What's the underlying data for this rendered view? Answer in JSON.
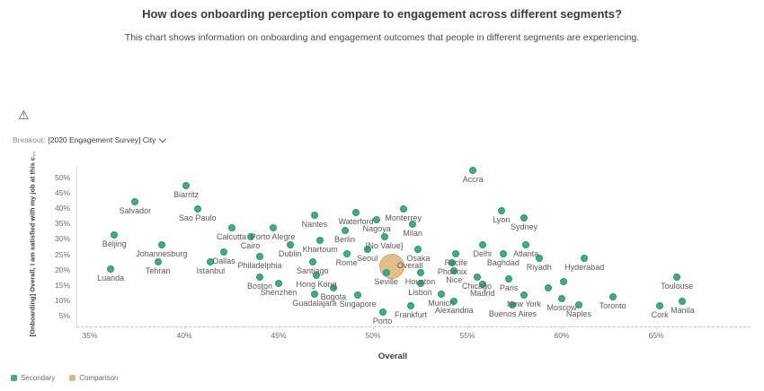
{
  "header": {
    "title": "How does onboarding perception compare to engagement across different segments?",
    "subtitle": "This chart shows information on onboarding and engagement outcomes that people in different segments are experiencing."
  },
  "toolbar": {
    "warning_icon": "warning-triangle",
    "warning_glyph": "⚠",
    "breakout_label": "Breakout:",
    "breakout_value": "[2020 Engagement Survey] City"
  },
  "legend": [
    {
      "label": "Secondary",
      "color": "#41ab85"
    },
    {
      "label": "Comparison",
      "color": "#dfb87e"
    }
  ],
  "chart_data": {
    "type": "scatter",
    "xlabel": "Overall",
    "ylabel": "[Onboarding] Overall, I am satisfied with my job at this c...",
    "x_tick_values": [
      35,
      40,
      45,
      50,
      55,
      60,
      65
    ],
    "x_tick_labels": [
      "35%",
      "40%",
      "45%",
      "50%",
      "55%",
      "60%",
      "65%"
    ],
    "y_tick_values": [
      50,
      45,
      40,
      35,
      30,
      25,
      20,
      15,
      10,
      5
    ],
    "y_tick_labels": [
      "50%",
      "45%",
      "40%",
      "35%",
      "30%",
      "25%",
      "20%",
      "15%",
      "10%",
      "5%"
    ],
    "xlim": [
      34.3,
      70
    ],
    "ylim": [
      1.2,
      53.5
    ],
    "grid": false,
    "legend_position": "bottom-left",
    "series": [
      {
        "name": "Secondary",
        "color": "#41ab85",
        "points": [
          {
            "city": "Luanda",
            "x": 36.1,
            "y": 20
          },
          {
            "city": "Beijing",
            "x": 36.3,
            "y": 31
          },
          {
            "city": "Salvador",
            "x": 37.4,
            "y": 42
          },
          {
            "city": "Tehran",
            "x": 38.6,
            "y": 22.5
          },
          {
            "city": "Johannesburg",
            "x": 38.8,
            "y": 28
          },
          {
            "city": "Biarritz",
            "x": 40.1,
            "y": 47
          },
          {
            "city": "Sao Paulo",
            "x": 40.7,
            "y": 39.5
          },
          {
            "city": "Istanbul",
            "x": 41.4,
            "y": 22.5
          },
          {
            "city": "Dallas",
            "x": 42.1,
            "y": 25.5
          },
          {
            "city": "Calcutta",
            "x": 42.5,
            "y": 33.5
          },
          {
            "city": "Cairo",
            "x": 43.5,
            "y": 30.5
          },
          {
            "city": "Philadelphia",
            "x": 44.0,
            "y": 24
          },
          {
            "city": "Boston",
            "x": 44.0,
            "y": 17.5
          },
          {
            "city": "Porto Alegre",
            "x": 44.7,
            "y": 33.5
          },
          {
            "city": "Shenzhen",
            "x": 45.0,
            "y": 15.5
          },
          {
            "city": "Dublin",
            "x": 45.6,
            "y": 28
          },
          {
            "city": "Santiago",
            "x": 46.8,
            "y": 22.5
          },
          {
            "city": "Nantes",
            "x": 46.9,
            "y": 37.5
          },
          {
            "city": "Guadalajara",
            "x": 46.9,
            "y": 12
          },
          {
            "city": "Hong Kong",
            "x": 47.0,
            "y": 18
          },
          {
            "city": "Khartoum",
            "x": 47.2,
            "y": 29.5
          },
          {
            "city": "Bogota",
            "x": 47.9,
            "y": 14
          },
          {
            "city": "Berlin",
            "x": 48.5,
            "y": 32.5
          },
          {
            "city": "Rome",
            "x": 48.6,
            "y": 25
          },
          {
            "city": "Waterford",
            "x": 49.1,
            "y": 38.5
          },
          {
            "city": "Singapore",
            "x": 49.2,
            "y": 11.5
          },
          {
            "city": "Seoul",
            "x": 49.7,
            "y": 26.5
          },
          {
            "city": "Nagoya",
            "x": 50.2,
            "y": 36
          },
          {
            "city": "Porto",
            "x": 50.5,
            "y": 6
          },
          {
            "city": "[No Value]",
            "x": 50.6,
            "y": 30.5
          },
          {
            "city": "Seville",
            "x": 50.7,
            "y": 19
          },
          {
            "city": "Monterrey",
            "x": 51.6,
            "y": 39.5
          },
          {
            "city": "Frankfurt",
            "x": 52.0,
            "y": 8
          },
          {
            "city": "Milan",
            "x": 52.1,
            "y": 34.5
          },
          {
            "city": "Osaka",
            "x": 52.4,
            "y": 26.5
          },
          {
            "city": "Houston",
            "x": 52.5,
            "y": 19
          },
          {
            "city": "Lisbon",
            "x": 52.5,
            "y": 15.5
          },
          {
            "city": "Munich",
            "x": 53.6,
            "y": 12
          },
          {
            "city": "Phoenix",
            "x": 54.2,
            "y": 22
          },
          {
            "city": "Nice",
            "x": 54.3,
            "y": 19.5
          },
          {
            "city": "Alexandria",
            "x": 54.3,
            "y": 9.5
          },
          {
            "city": "Recife",
            "x": 54.4,
            "y": 25
          },
          {
            "city": "Accra",
            "x": 55.3,
            "y": 52
          },
          {
            "city": "Chicago",
            "x": 55.5,
            "y": 17.5
          },
          {
            "city": "Delhi",
            "x": 55.8,
            "y": 28
          },
          {
            "city": "Madrid",
            "x": 55.8,
            "y": 15
          },
          {
            "city": "Lyon",
            "x": 56.8,
            "y": 39
          },
          {
            "city": "Baghdad",
            "x": 56.9,
            "y": 25
          },
          {
            "city": "Paris",
            "x": 57.2,
            "y": 17
          },
          {
            "city": "Buenos Aires",
            "x": 57.4,
            "y": 8.5
          },
          {
            "city": "Sydney",
            "x": 58.0,
            "y": 36.5
          },
          {
            "city": "New York",
            "x": 58.0,
            "y": 11.5
          },
          {
            "city": "Atlanta",
            "x": 58.1,
            "y": 28
          },
          {
            "city": "Riyadh",
            "x": 58.8,
            "y": 23.5
          },
          {
            "city": "",
            "x": 59.3,
            "y": 14
          },
          {
            "city": "",
            "x": 60.1,
            "y": 16
          },
          {
            "city": "Moscow",
            "x": 60.0,
            "y": 10.5
          },
          {
            "city": "Naples",
            "x": 60.9,
            "y": 8.5
          },
          {
            "city": "Hyderabad",
            "x": 61.2,
            "y": 23.5
          },
          {
            "city": "Toronto",
            "x": 62.7,
            "y": 11
          },
          {
            "city": "Cork",
            "x": 65.2,
            "y": 8
          },
          {
            "city": "Toulouse",
            "x": 66.1,
            "y": 17.5
          },
          {
            "city": "Manila",
            "x": 66.4,
            "y": 9.5
          }
        ]
      },
      {
        "name": "Comparison",
        "color": "#dfb87e",
        "points": [
          {
            "city": "Overall",
            "x": 51.0,
            "y": 21,
            "r": 14,
            "ldx": 20,
            "ldy": -21
          }
        ]
      }
    ]
  }
}
